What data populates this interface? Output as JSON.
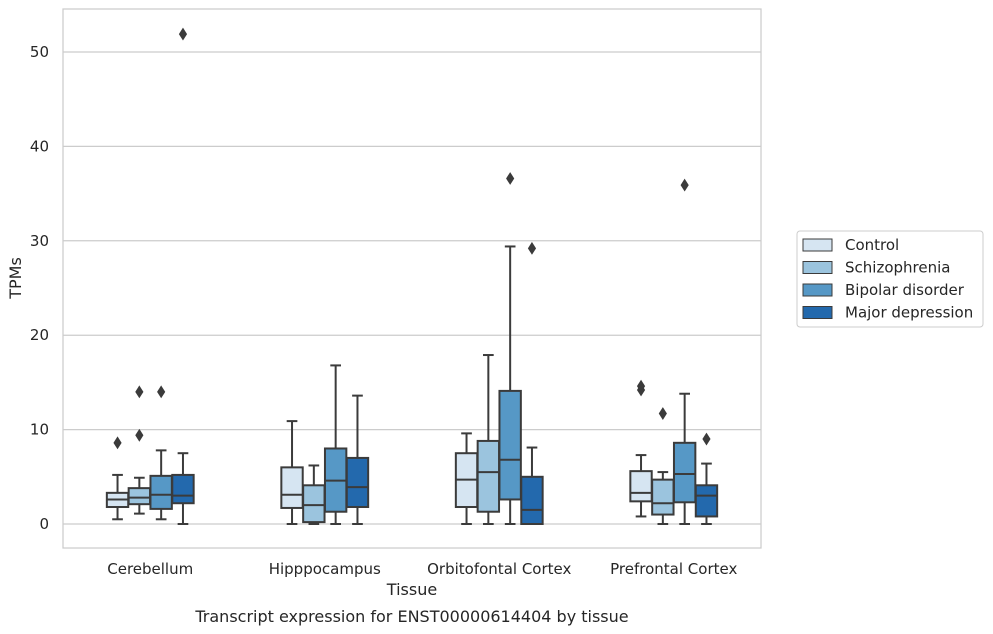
{
  "chart_data": {
    "type": "box",
    "title": "",
    "caption": "Transcript expression for ENST00000614404 by tissue",
    "xlabel": "Tissue",
    "ylabel": "TPMs",
    "ylim": [
      -2.5,
      54.5
    ],
    "yticks": [
      0,
      10,
      20,
      30,
      40,
      50
    ],
    "grid": "horizontal",
    "legend_position": "right",
    "categories": [
      "Cerebellum",
      "Hipppocampus",
      "Orbitofontal Cortex",
      "Prefrontal Cortex"
    ],
    "series": [
      {
        "name": "Control",
        "color": "#d6e5f2",
        "boxes": [
          {
            "whislo": 0.5,
            "q1": 1.8,
            "med": 2.6,
            "q3": 3.3,
            "whishi": 5.2,
            "fliers": [
              8.6
            ]
          },
          {
            "whislo": 0.0,
            "q1": 1.7,
            "med": 3.1,
            "q3": 6.0,
            "whishi": 10.9,
            "fliers": []
          },
          {
            "whislo": 0.0,
            "q1": 1.8,
            "med": 4.7,
            "q3": 7.5,
            "whishi": 9.6,
            "fliers": []
          },
          {
            "whislo": 0.8,
            "q1": 2.4,
            "med": 3.3,
            "q3": 5.6,
            "whishi": 7.3,
            "fliers": [
              14.2,
              14.6
            ]
          }
        ]
      },
      {
        "name": "Schizophrenia",
        "color": "#9bc4de",
        "boxes": [
          {
            "whislo": 1.1,
            "q1": 2.1,
            "med": 2.8,
            "q3": 3.8,
            "whishi": 4.9,
            "fliers": [
              9.4,
              14.0
            ]
          },
          {
            "whislo": 0.0,
            "q1": 0.2,
            "med": 2.0,
            "q3": 4.1,
            "whishi": 6.2,
            "fliers": []
          },
          {
            "whislo": 0.0,
            "q1": 1.3,
            "med": 5.5,
            "q3": 8.8,
            "whishi": 17.9,
            "fliers": []
          },
          {
            "whislo": 0.0,
            "q1": 1.0,
            "med": 2.2,
            "q3": 4.7,
            "whishi": 5.5,
            "fliers": [
              11.7
            ]
          }
        ]
      },
      {
        "name": "Bipolar disorder",
        "color": "#5698c6",
        "boxes": [
          {
            "whislo": 0.5,
            "q1": 1.6,
            "med": 3.1,
            "q3": 5.1,
            "whishi": 7.8,
            "fliers": [
              14.0
            ]
          },
          {
            "whislo": 0.0,
            "q1": 1.3,
            "med": 4.6,
            "q3": 8.0,
            "whishi": 16.8,
            "fliers": []
          },
          {
            "whislo": 0.0,
            "q1": 2.6,
            "med": 6.8,
            "q3": 14.1,
            "whishi": 29.4,
            "fliers": [
              36.6
            ]
          },
          {
            "whislo": 0.0,
            "q1": 2.3,
            "med": 5.3,
            "q3": 8.6,
            "whishi": 13.8,
            "fliers": [
              35.9
            ]
          }
        ]
      },
      {
        "name": "Major depression",
        "color": "#2369ad",
        "boxes": [
          {
            "whislo": 0.0,
            "q1": 2.2,
            "med": 3.0,
            "q3": 5.2,
            "whishi": 7.5,
            "fliers": [
              51.9
            ]
          },
          {
            "whislo": 0.0,
            "q1": 1.8,
            "med": 3.9,
            "q3": 7.0,
            "whishi": 13.6,
            "fliers": []
          },
          {
            "whislo": 0.0,
            "q1": 0.0,
            "med": 1.5,
            "q3": 5.0,
            "whishi": 8.1,
            "fliers": [
              29.2
            ]
          },
          {
            "whislo": 0.0,
            "q1": 0.8,
            "med": 3.0,
            "q3": 4.1,
            "whishi": 6.4,
            "fliers": [
              9.0
            ]
          }
        ]
      }
    ]
  }
}
